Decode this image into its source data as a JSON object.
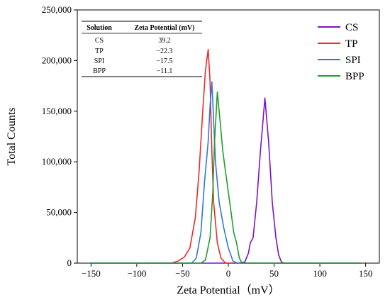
{
  "chart_data": {
    "type": "line",
    "title": "",
    "xlabel": "Zeta Potential（mV）",
    "ylabel": "Total Counts",
    "xlim": [
      -165,
      165
    ],
    "ylim": [
      0,
      250000
    ],
    "xticks": [
      -150,
      -100,
      -50,
      0,
      50,
      100,
      150
    ],
    "yticks": [
      0,
      50000,
      100000,
      150000,
      200000,
      250000
    ],
    "xtick_labels": [
      "−150",
      "−100",
      "−50",
      "0",
      "50",
      "100",
      "150"
    ],
    "ytick_labels": [
      "0",
      "50,000",
      "100,000",
      "150,000",
      "200,000",
      "250,000"
    ],
    "grid": false,
    "legend": "top-right",
    "series": [
      {
        "name": "CS",
        "color": "#7d12c9",
        "points": [
          [
            -150,
            0
          ],
          [
            10,
            0
          ],
          [
            18,
            1000
          ],
          [
            22,
            10000
          ],
          [
            24,
            20000
          ],
          [
            27,
            25000
          ],
          [
            31,
            60000
          ],
          [
            35,
            110000
          ],
          [
            40,
            163000
          ],
          [
            44,
            120000
          ],
          [
            48,
            60000
          ],
          [
            52,
            25000
          ],
          [
            55,
            8000
          ],
          [
            58,
            1000
          ],
          [
            62,
            0
          ],
          [
            145,
            0
          ]
        ]
      },
      {
        "name": "TP",
        "color": "#ee2a2a",
        "points": [
          [
            -150,
            0
          ],
          [
            -62,
            0
          ],
          [
            -55,
            2000
          ],
          [
            -48,
            6000
          ],
          [
            -42,
            15000
          ],
          [
            -36,
            45000
          ],
          [
            -32,
            90000
          ],
          [
            -28,
            150000
          ],
          [
            -25,
            190000
          ],
          [
            -22,
            211000
          ],
          [
            -20,
            180000
          ],
          [
            -18,
            110000
          ],
          [
            -16,
            60000
          ],
          [
            -14,
            40000
          ],
          [
            -12,
            20000
          ],
          [
            -8,
            5000
          ],
          [
            -3,
            0
          ],
          [
            145,
            0
          ]
        ]
      },
      {
        "name": "SPI",
        "color": "#2f79d4",
        "points": [
          [
            -150,
            0
          ],
          [
            -40,
            0
          ],
          [
            -35,
            5000
          ],
          [
            -30,
            30000
          ],
          [
            -26,
            80000
          ],
          [
            -22,
            120000
          ],
          [
            -20,
            155000
          ],
          [
            -18,
            179000
          ],
          [
            -16,
            140000
          ],
          [
            -14,
            100000
          ],
          [
            -10,
            60000
          ],
          [
            -5,
            35000
          ],
          [
            0,
            15000
          ],
          [
            5,
            2000
          ],
          [
            10,
            0
          ],
          [
            145,
            0
          ]
        ]
      },
      {
        "name": "BPP",
        "color": "#1f9e2b",
        "points": [
          [
            -150,
            0
          ],
          [
            -30,
            0
          ],
          [
            -25,
            3000
          ],
          [
            -20,
            25000
          ],
          [
            -17,
            70000
          ],
          [
            -15,
            120000
          ],
          [
            -12,
            169000
          ],
          [
            -9,
            140000
          ],
          [
            -6,
            110000
          ],
          [
            -3,
            90000
          ],
          [
            0,
            70000
          ],
          [
            3,
            50000
          ],
          [
            6,
            30000
          ],
          [
            9,
            20000
          ],
          [
            12,
            5000
          ],
          [
            15,
            0
          ],
          [
            145,
            0
          ]
        ]
      }
    ]
  },
  "table": {
    "headers": [
      "Solution",
      "Zeta Potential (mV)"
    ],
    "rows": [
      [
        "CS",
        "39.2"
      ],
      [
        "TP",
        "−22.3"
      ],
      [
        "SPI",
        "−17.5"
      ],
      [
        "BPP",
        "−11.1"
      ]
    ]
  }
}
